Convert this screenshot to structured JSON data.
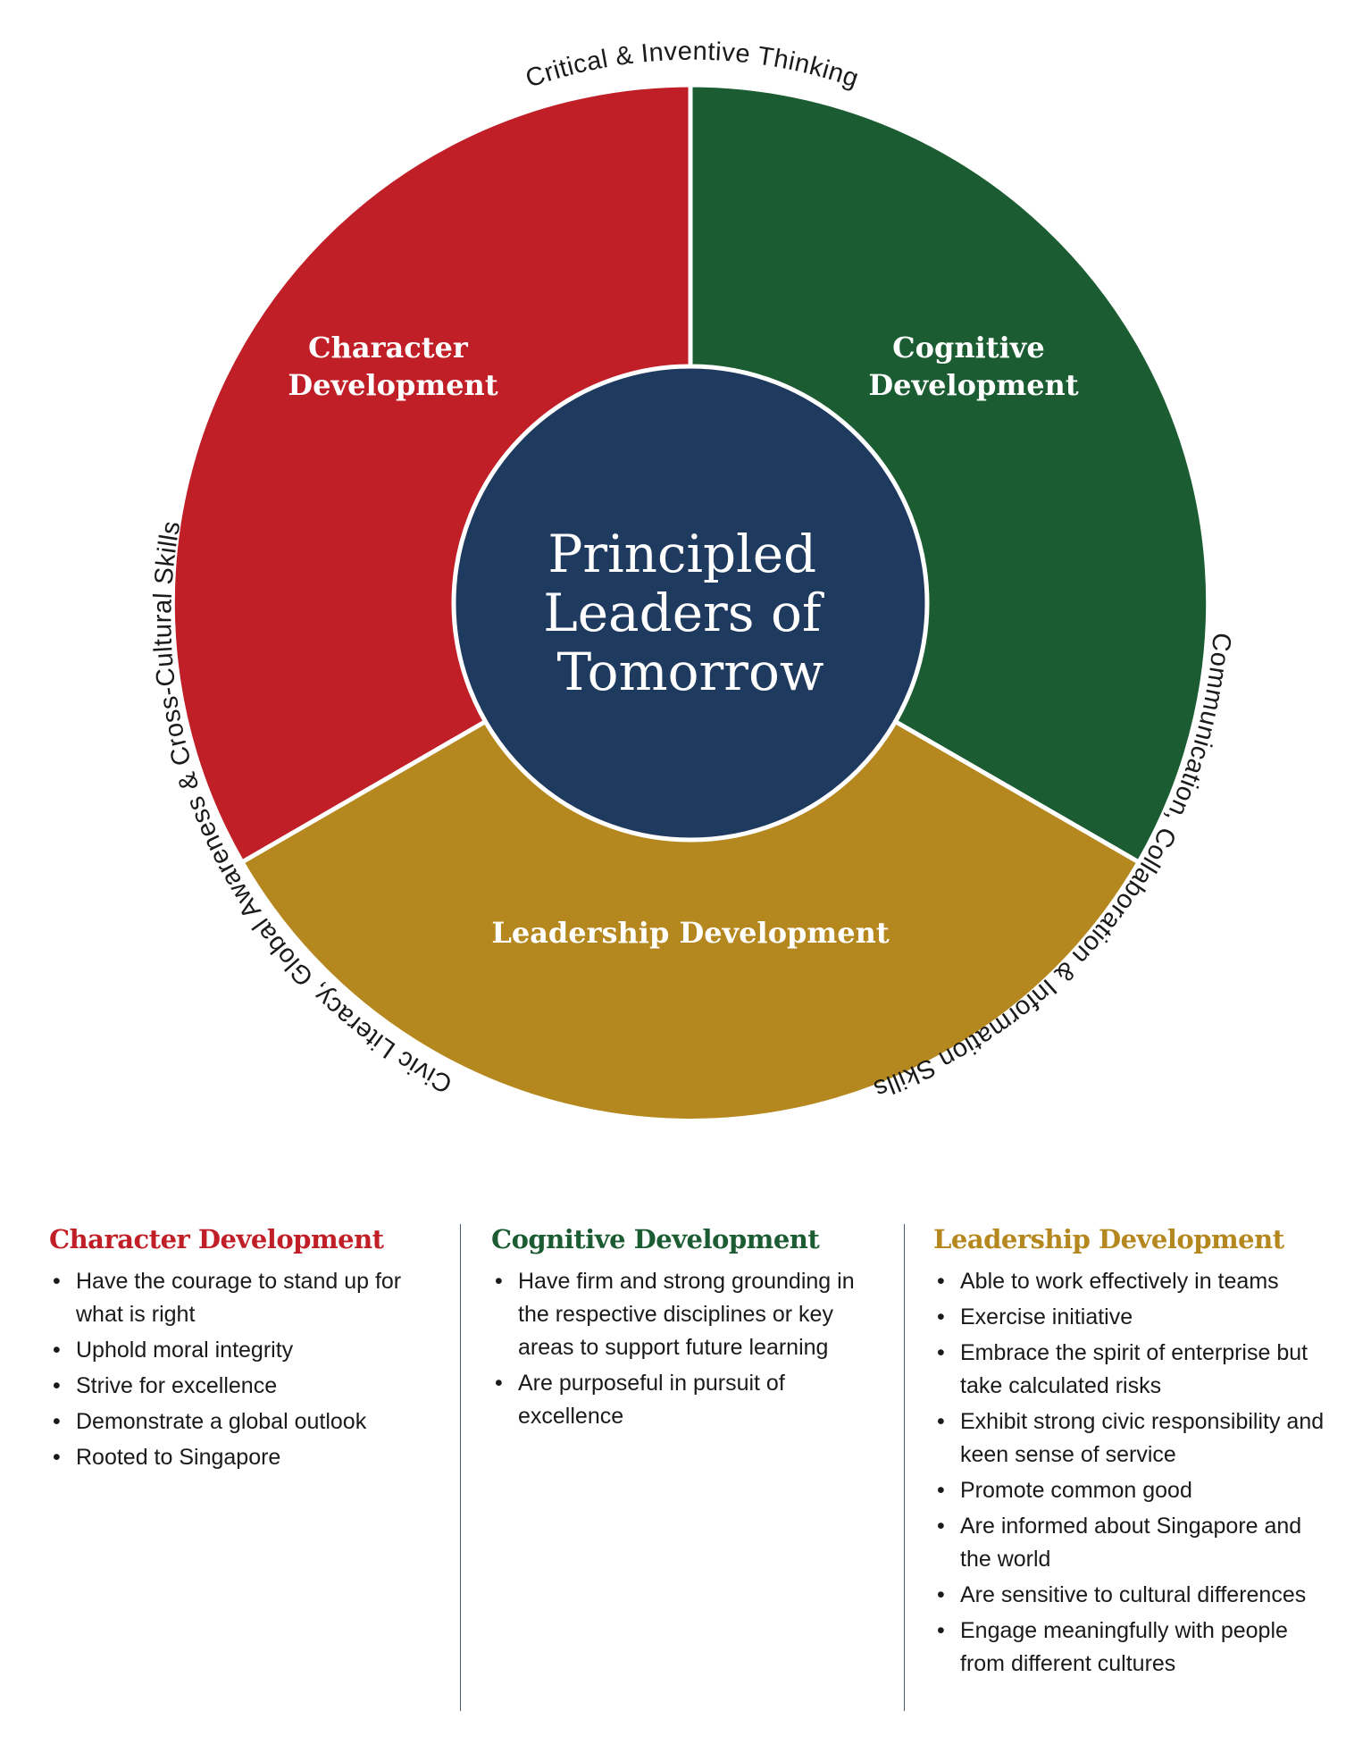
{
  "diagram": {
    "center_title": [
      "Principled",
      "Leaders of",
      "Tomorrow"
    ],
    "segments": [
      {
        "name": "character",
        "label_lines": [
          "Character",
          "Development"
        ],
        "color": "#c11f27"
      },
      {
        "name": "cognitive",
        "label_lines": [
          "Cognitive",
          "Development"
        ],
        "color": "#1b5c32"
      },
      {
        "name": "leadership",
        "label_lines": [
          "Leadership Development"
        ],
        "color": "#b5881f"
      }
    ],
    "center_color": "#1f3a5f",
    "ring_labels": {
      "top": "Critical & Inventive Thinking",
      "left": "Civic Literacy, Global Awareness & Cross-Cultural Skills",
      "right": "Communication, Collaboration & Information Skills"
    }
  },
  "columns": [
    {
      "title": "Character Development",
      "color": "#c11f27",
      "items": [
        "Have the courage to stand up for what is right",
        "Uphold moral integrity",
        "Strive for excellence",
        "Demonstrate a global outlook",
        "Rooted to Singapore"
      ]
    },
    {
      "title": "Cognitive Development",
      "color": "#1b5c32",
      "items": [
        "Have firm and strong grounding in the respective disciplines or key areas to support future learning",
        "Are purposeful in pursuit of excellence"
      ]
    },
    {
      "title": "Leadership Development",
      "color": "#b5881f",
      "items": [
        "Able to work effectively in teams",
        "Exercise initiative",
        "Embrace the spirit of enterprise but take calculated risks",
        "Exhibit strong civic responsibility and keen sense of service",
        "Promote common good",
        "Are informed about Singapore and the world",
        "Are sensitive to cultural differences",
        "Engage meaningfully with people from different cultures"
      ]
    }
  ]
}
